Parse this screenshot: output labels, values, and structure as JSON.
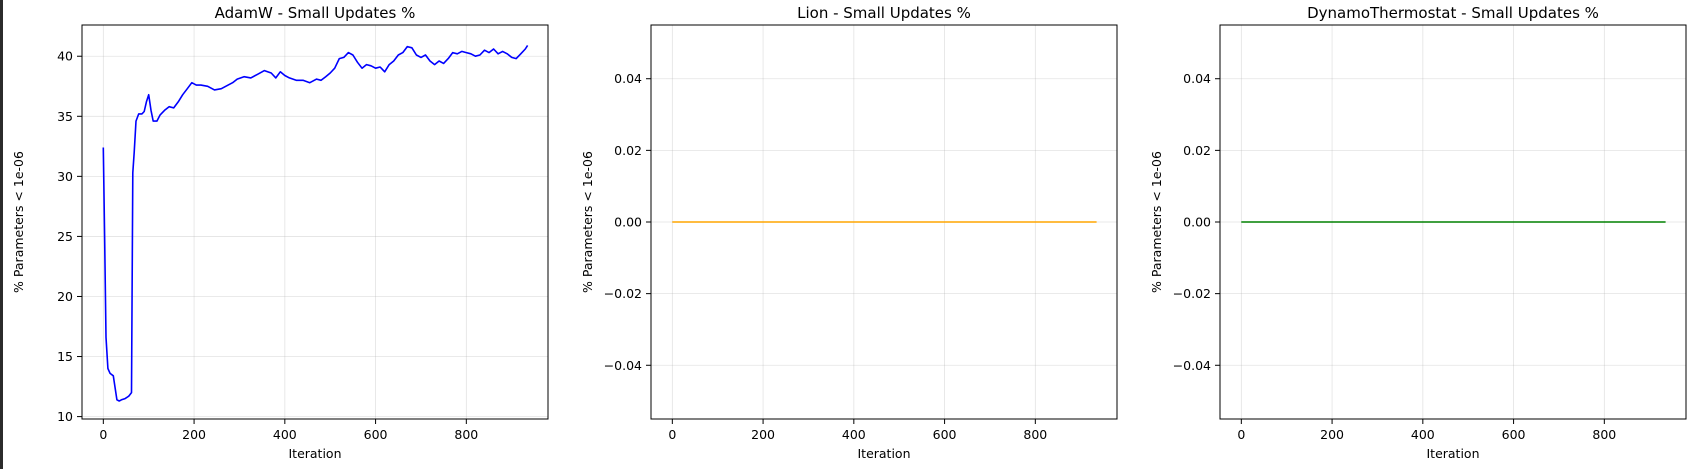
{
  "chart_data": [
    {
      "type": "line",
      "title": "AdamW - Small Updates %",
      "xlabel": "Iteration",
      "ylabel": "% Parameters < 1e-06",
      "xlim": [
        -47,
        980
      ],
      "ylim": [
        9.8,
        42.6
      ],
      "xticks": [
        0,
        200,
        400,
        600,
        800
      ],
      "yticks": [
        10,
        15,
        20,
        25,
        30,
        35,
        40
      ],
      "ytick_labels": [
        "10",
        "15",
        "20",
        "25",
        "30",
        "35",
        "40"
      ],
      "grid": true,
      "color": "#0000ff",
      "series": [
        {
          "x": [
            0,
            3,
            6,
            10,
            15,
            22,
            30,
            35,
            40,
            48,
            56,
            62,
            65,
            68,
            72,
            78,
            85,
            90,
            95,
            100,
            105,
            110,
            118,
            125,
            135,
            145,
            155,
            165,
            175,
            185,
            195,
            205,
            215,
            230,
            245,
            260,
            275,
            285,
            295,
            310,
            325,
            340,
            355,
            370,
            380,
            390,
            400,
            410,
            425,
            440,
            455,
            470,
            480,
            490,
            500,
            510,
            520,
            530,
            540,
            550,
            560,
            570,
            580,
            590,
            600,
            610,
            620,
            630,
            640,
            650,
            660,
            670,
            680,
            690,
            700,
            710,
            720,
            730,
            740,
            750,
            760,
            770,
            780,
            790,
            800,
            810,
            820,
            830,
            840,
            850,
            860,
            870,
            880,
            890,
            900,
            910,
            920,
            930,
            935
          ],
          "y": [
            32.4,
            24.5,
            16.6,
            14.0,
            13.6,
            13.4,
            11.4,
            11.3,
            11.4,
            11.5,
            11.7,
            12.0,
            30.3,
            32.0,
            34.6,
            35.2,
            35.2,
            35.4,
            36.2,
            36.8,
            35.5,
            34.6,
            34.6,
            35.1,
            35.5,
            35.8,
            35.7,
            36.2,
            36.8,
            37.3,
            37.8,
            37.6,
            37.6,
            37.5,
            37.2,
            37.3,
            37.6,
            37.8,
            38.1,
            38.3,
            38.2,
            38.5,
            38.8,
            38.6,
            38.2,
            38.7,
            38.4,
            38.2,
            38.0,
            38.0,
            37.8,
            38.1,
            38.0,
            38.3,
            38.6,
            39.0,
            39.8,
            39.9,
            40.3,
            40.1,
            39.5,
            39.0,
            39.3,
            39.2,
            39.0,
            39.1,
            38.7,
            39.3,
            39.6,
            40.1,
            40.3,
            40.8,
            40.7,
            40.1,
            39.9,
            40.1,
            39.6,
            39.3,
            39.6,
            39.4,
            39.8,
            40.3,
            40.2,
            40.4,
            40.3,
            40.2,
            40.0,
            40.1,
            40.5,
            40.3,
            40.6,
            40.2,
            40.4,
            40.2,
            39.9,
            39.8,
            40.2,
            40.6,
            40.9
          ]
        }
      ]
    },
    {
      "type": "line",
      "title": "Lion - Small Updates %",
      "xlabel": "Iteration",
      "ylabel": "% Parameters < 1e-06",
      "xlim": [
        -47,
        980
      ],
      "ylim": [
        -0.055,
        0.055
      ],
      "xticks": [
        0,
        200,
        400,
        600,
        800
      ],
      "yticks": [
        -0.04,
        -0.02,
        0.0,
        0.02,
        0.04
      ],
      "ytick_labels": [
        "−0.04",
        "−0.02",
        "0.00",
        "0.02",
        "0.04"
      ],
      "grid": true,
      "color": "#ffa500",
      "series": [
        {
          "x": [
            0,
            935
          ],
          "y": [
            0,
            0
          ]
        }
      ]
    },
    {
      "type": "line",
      "title": "DynamoThermostat - Small Updates %",
      "xlabel": "Iteration",
      "ylabel": "% Parameters < 1e-06",
      "xlim": [
        -47,
        980
      ],
      "ylim": [
        -0.055,
        0.055
      ],
      "xticks": [
        0,
        200,
        400,
        600,
        800
      ],
      "yticks": [
        -0.04,
        -0.02,
        0.0,
        0.02,
        0.04
      ],
      "ytick_labels": [
        "−0.04",
        "−0.02",
        "0.00",
        "0.02",
        "0.04"
      ],
      "grid": true,
      "color": "#008000",
      "series": [
        {
          "x": [
            0,
            935
          ],
          "y": [
            0,
            0
          ]
        }
      ]
    }
  ]
}
